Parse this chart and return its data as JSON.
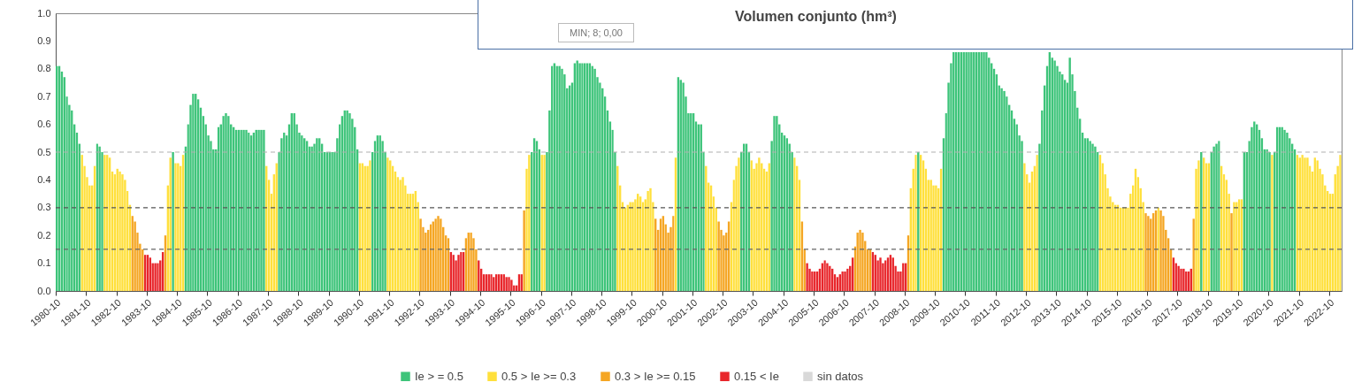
{
  "chart_data": {
    "type": "bar",
    "legend": "bottom",
    "grid": false,
    "annotations": [
      "Volumen conjunto (hm³)",
      "MIN; 8; 0,00"
    ],
    "xlim": [
      "1980-10",
      "2023-03"
    ],
    "xticks": [
      "1980-10",
      "1981-10",
      "1982-10",
      "1983-10",
      "1984-10",
      "1985-10",
      "1986-10",
      "1987-10",
      "1988-10",
      "1989-10",
      "1990-10",
      "1991-10",
      "1992-10",
      "1993-10",
      "1994-10",
      "1995-10",
      "1996-10",
      "1997-10",
      "1998-10",
      "1999-10",
      "2000-10",
      "2001-10",
      "2002-10",
      "2003-10",
      "2004-10",
      "2005-10",
      "2006-10",
      "2007-10",
      "2008-10",
      "2009-10",
      "2010-10",
      "2011-10",
      "2012-10",
      "2013-10",
      "2014-10",
      "2015-10",
      "2016-10",
      "2017-10",
      "2018-10",
      "2019-10",
      "2020-10",
      "2021-10",
      "2022-10"
    ],
    "ylim": [
      0,
      1
    ],
    "yticks": [
      {
        "value": 0,
        "label": "0.0"
      },
      0.1,
      0.2,
      0.3,
      0.4,
      0.5,
      0.6,
      0.7,
      0.8,
      0.9,
      {
        "value": 1,
        "label": "1.0"
      }
    ],
    "ref_lines": [
      {
        "axis": "y",
        "value": 0.5,
        "color": "#b0b0b0",
        "line_style": "dashed"
      },
      {
        "axis": "y",
        "value": 0.3,
        "color": "#555555",
        "line_style": "dashed"
      },
      {
        "axis": "y",
        "value": 0.15,
        "color": "#666666",
        "line_style": "dashed"
      }
    ],
    "series": [
      {
        "name": "Ie > = 0.5",
        "color": "#3ec47a",
        "x": [
          "1980-10",
          "1980-11",
          "1980-12",
          "1981-01",
          "1981-02",
          "1981-03",
          "1981-04",
          "1981-05",
          "1981-06",
          "1981-07",
          "1982-02",
          "1982-03",
          "1982-04",
          "1984-08",
          "1985-01",
          "1985-02",
          "1985-03",
          "1985-04",
          "1985-05",
          "1985-06",
          "1985-07",
          "1985-08",
          "1985-09",
          "1985-10",
          "1985-11",
          "1985-12",
          "1986-01",
          "1986-02",
          "1986-03",
          "1986-04",
          "1986-05",
          "1986-06",
          "1986-07",
          "1986-08",
          "1986-09",
          "1986-10",
          "1986-11",
          "1986-12",
          "1987-01",
          "1987-02",
          "1987-03",
          "1987-04",
          "1987-05",
          "1987-06",
          "1987-07",
          "1987-08",
          "1988-02",
          "1988-03",
          "1988-04",
          "1988-05",
          "1988-06",
          "1988-07",
          "1988-08",
          "1988-09",
          "1988-10",
          "1988-11",
          "1988-12",
          "1989-01",
          "1989-02",
          "1989-03",
          "1989-04",
          "1989-05",
          "1989-06",
          "1989-07",
          "1989-08",
          "1989-09",
          "1989-10",
          "1989-11",
          "1989-12",
          "1990-01",
          "1990-02",
          "1990-03",
          "1990-04",
          "1990-05",
          "1990-06",
          "1990-07",
          "1990-08",
          "1990-09",
          "1991-03",
          "1991-04",
          "1991-05",
          "1991-06",
          "1991-07",
          "1991-08",
          "1996-06",
          "1996-07",
          "1996-08",
          "1996-09",
          "1996-12",
          "1997-01",
          "1997-02",
          "1997-03",
          "1997-04",
          "1997-05",
          "1997-06",
          "1997-07",
          "1997-08",
          "1997-09",
          "1997-10",
          "1997-11",
          "1997-12",
          "1998-01",
          "1998-02",
          "1998-03",
          "1998-04",
          "1998-05",
          "1998-06",
          "1998-07",
          "1998-08",
          "1998-09",
          "1998-10",
          "1998-11",
          "1998-12",
          "1999-01",
          "1999-02",
          "1999-03",
          "2001-04",
          "2001-05",
          "2001-06",
          "2001-07",
          "2001-08",
          "2001-09",
          "2001-10",
          "2001-11",
          "2001-12",
          "2002-01",
          "2002-02",
          "2003-05",
          "2003-06",
          "2003-07",
          "2003-08",
          "2004-05",
          "2004-06",
          "2004-07",
          "2004-08",
          "2004-09",
          "2004-10",
          "2004-11",
          "2004-12",
          "2005-01",
          "2009-03",
          "2010-01",
          "2010-02",
          "2010-03",
          "2010-04",
          "2010-05",
          "2010-06",
          "2010-07",
          "2010-08",
          "2010-09",
          "2010-10",
          "2010-11",
          "2010-12",
          "2011-01",
          "2011-02",
          "2011-03",
          "2011-04",
          "2011-05",
          "2011-06",
          "2011-07",
          "2011-08",
          "2011-09",
          "2011-10",
          "2011-11",
          "2011-12",
          "2012-01",
          "2012-02",
          "2012-03",
          "2012-04",
          "2012-05",
          "2012-06",
          "2012-07",
          "2012-08",
          "2013-03",
          "2013-04",
          "2013-05",
          "2013-06",
          "2013-07",
          "2013-08",
          "2013-09",
          "2013-10",
          "2013-11",
          "2013-12",
          "2014-01",
          "2014-02",
          "2014-03",
          "2014-04",
          "2014-05",
          "2014-06",
          "2014-07",
          "2014-08",
          "2014-09",
          "2014-10",
          "2014-11",
          "2014-12",
          "2015-01",
          "2015-02",
          "2018-07",
          "2018-11",
          "2018-12",
          "2019-01",
          "2019-02",
          "2019-12",
          "2020-01",
          "2020-02",
          "2020-03",
          "2020-04",
          "2020-05",
          "2020-06",
          "2020-07",
          "2020-08",
          "2020-09",
          "2020-10",
          "2020-12",
          "2021-01",
          "2021-02",
          "2021-03",
          "2021-04",
          "2021-05",
          "2021-06",
          "2021-07",
          "2021-08"
        ],
        "values": [
          0.81,
          0.81,
          0.79,
          0.77,
          0.7,
          0.67,
          0.65,
          0.6,
          0.57,
          0.53,
          0.53,
          0.52,
          0.5,
          0.5,
          0.52,
          0.6,
          0.67,
          0.71,
          0.71,
          0.69,
          0.66,
          0.63,
          0.6,
          0.56,
          0.54,
          0.51,
          0.51,
          0.59,
          0.6,
          0.63,
          0.64,
          0.63,
          0.6,
          0.59,
          0.58,
          0.58,
          0.58,
          0.58,
          0.58,
          0.57,
          0.56,
          0.57,
          0.58,
          0.58,
          0.58,
          0.58,
          0.5,
          0.55,
          0.57,
          0.56,
          0.6,
          0.64,
          0.64,
          0.6,
          0.57,
          0.56,
          0.55,
          0.54,
          0.52,
          0.52,
          0.53,
          0.55,
          0.55,
          0.53,
          0.5,
          0.5,
          0.5,
          0.5,
          0.5,
          0.55,
          0.6,
          0.63,
          0.65,
          0.65,
          0.64,
          0.62,
          0.59,
          0.51,
          0.5,
          0.54,
          0.56,
          0.56,
          0.54,
          0.5,
          0.5,
          0.55,
          0.54,
          0.51,
          0.5,
          0.65,
          0.81,
          0.82,
          0.81,
          0.81,
          0.8,
          0.78,
          0.73,
          0.74,
          0.75,
          0.82,
          0.83,
          0.82,
          0.82,
          0.82,
          0.82,
          0.82,
          0.81,
          0.8,
          0.77,
          0.75,
          0.73,
          0.7,
          0.65,
          0.61,
          0.58,
          0.5,
          0.77,
          0.76,
          0.75,
          0.7,
          0.64,
          0.64,
          0.64,
          0.61,
          0.6,
          0.6,
          0.5,
          0.5,
          0.53,
          0.53,
          0.5,
          0.54,
          0.63,
          0.63,
          0.6,
          0.57,
          0.56,
          0.55,
          0.53,
          0.5,
          0.5,
          0.55,
          0.64,
          0.75,
          0.82,
          0.86,
          0.86,
          0.86,
          0.86,
          0.86,
          0.86,
          0.86,
          0.86,
          0.86,
          0.86,
          0.86,
          0.86,
          0.86,
          0.86,
          0.84,
          0.82,
          0.8,
          0.78,
          0.74,
          0.73,
          0.72,
          0.7,
          0.67,
          0.65,
          0.62,
          0.6,
          0.56,
          0.54,
          0.53,
          0.65,
          0.74,
          0.81,
          0.86,
          0.84,
          0.83,
          0.81,
          0.79,
          0.78,
          0.76,
          0.75,
          0.84,
          0.78,
          0.72,
          0.66,
          0.62,
          0.57,
          0.55,
          0.55,
          0.54,
          0.53,
          0.52,
          0.5,
          0.5,
          0.5,
          0.52,
          0.53,
          0.54,
          0.5,
          0.5,
          0.54,
          0.59,
          0.61,
          0.6,
          0.58,
          0.55,
          0.51,
          0.51,
          0.5,
          0.5,
          0.59,
          0.59,
          0.59,
          0.58,
          0.57,
          0.55,
          0.53,
          0.51
        ]
      },
      {
        "name": "0.5 > Ie >= 0.3",
        "color": "#ffe03c",
        "x": [
          "1981-08",
          "1981-09",
          "1981-10",
          "1981-11",
          "1981-12",
          "1982-01",
          "1982-05",
          "1982-06",
          "1982-07",
          "1982-08",
          "1982-09",
          "1982-10",
          "1982-11",
          "1982-12",
          "1983-01",
          "1983-02",
          "1983-03",
          "1984-06",
          "1984-07",
          "1984-09",
          "1984-10",
          "1984-11",
          "1984-12",
          "1987-09",
          "1987-10",
          "1987-11",
          "1987-12",
          "1988-01",
          "1990-10",
          "1990-11",
          "1990-12",
          "1991-01",
          "1991-02",
          "1991-09",
          "1991-10",
          "1991-11",
          "1991-12",
          "1992-01",
          "1992-02",
          "1992-03",
          "1992-04",
          "1992-05",
          "1992-06",
          "1992-07",
          "1992-08",
          "1992-09",
          "1996-04",
          "1996-05",
          "1996-10",
          "1996-11",
          "1999-04",
          "1999-05",
          "1999-06",
          "1999-07",
          "1999-08",
          "1999-09",
          "1999-10",
          "1999-11",
          "1999-12",
          "2000-01",
          "2000-02",
          "2000-03",
          "2000-04",
          "2000-05",
          "2000-06",
          "2001-03",
          "2002-03",
          "2002-04",
          "2002-05",
          "2002-06",
          "2002-07",
          "2003-01",
          "2003-02",
          "2003-03",
          "2003-04",
          "2003-09",
          "2003-10",
          "2003-11",
          "2003-12",
          "2004-01",
          "2004-02",
          "2004-03",
          "2004-04",
          "2005-02",
          "2005-03",
          "2005-04",
          "2008-12",
          "2009-01",
          "2009-02",
          "2009-04",
          "2009-05",
          "2009-06",
          "2009-07",
          "2009-08",
          "2009-09",
          "2009-10",
          "2009-11",
          "2009-12",
          "2012-09",
          "2012-10",
          "2012-11",
          "2012-12",
          "2013-01",
          "2013-02",
          "2015-03",
          "2015-04",
          "2015-05",
          "2015-06",
          "2015-07",
          "2015-08",
          "2015-09",
          "2015-10",
          "2015-11",
          "2015-12",
          "2016-01",
          "2016-02",
          "2016-03",
          "2016-04",
          "2016-05",
          "2016-06",
          "2016-07",
          "2016-08",
          "2017-02",
          "2018-05",
          "2018-06",
          "2018-08",
          "2018-09",
          "2018-10",
          "2019-03",
          "2019-04",
          "2019-05",
          "2019-06",
          "2019-08",
          "2019-09",
          "2019-10",
          "2019-11",
          "2020-11",
          "2021-09",
          "2021-10",
          "2021-11",
          "2021-12",
          "2022-01",
          "2022-02",
          "2022-03",
          "2022-04",
          "2022-05",
          "2022-06",
          "2022-07",
          "2022-08",
          "2022-09",
          "2022-10",
          "2022-11",
          "2022-12",
          "2023-01",
          "2023-02"
        ],
        "values": [
          0.49,
          0.45,
          0.41,
          0.38,
          0.38,
          0.45,
          0.49,
          0.49,
          0.48,
          0.43,
          0.42,
          0.44,
          0.43,
          0.42,
          0.4,
          0.36,
          0.31,
          0.38,
          0.48,
          0.46,
          0.46,
          0.45,
          0.49,
          0.45,
          0.4,
          0.35,
          0.42,
          0.46,
          0.46,
          0.46,
          0.45,
          0.45,
          0.47,
          0.48,
          0.47,
          0.45,
          0.43,
          0.41,
          0.4,
          0.41,
          0.38,
          0.35,
          0.35,
          0.35,
          0.36,
          0.32,
          0.44,
          0.49,
          0.49,
          0.49,
          0.45,
          0.38,
          0.32,
          0.3,
          0.31,
          0.32,
          0.32,
          0.33,
          0.35,
          0.34,
          0.32,
          0.33,
          0.36,
          0.37,
          0.32,
          0.48,
          0.45,
          0.39,
          0.38,
          0.34,
          0.3,
          0.32,
          0.4,
          0.45,
          0.48,
          0.47,
          0.44,
          0.46,
          0.48,
          0.46,
          0.44,
          0.43,
          0.46,
          0.48,
          0.45,
          0.4,
          0.37,
          0.44,
          0.49,
          0.49,
          0.47,
          0.44,
          0.4,
          0.4,
          0.38,
          0.38,
          0.37,
          0.44,
          0.46,
          0.42,
          0.39,
          0.43,
          0.45,
          0.49,
          0.49,
          0.46,
          0.42,
          0.37,
          0.34,
          0.32,
          0.31,
          0.31,
          0.3,
          0.3,
          0.3,
          0.3,
          0.35,
          0.38,
          0.44,
          0.41,
          0.37,
          0.32,
          0.3,
          0.44,
          0.47,
          0.48,
          0.46,
          0.46,
          0.45,
          0.42,
          0.4,
          0.35,
          0.32,
          0.32,
          0.33,
          0.33,
          0.49,
          0.49,
          0.48,
          0.49,
          0.48,
          0.48,
          0.45,
          0.43,
          0.48,
          0.47,
          0.44,
          0.42,
          0.38,
          0.36,
          0.35,
          0.35,
          0.42,
          0.45,
          0.49
        ]
      },
      {
        "name": "0.3 > Ie >= 0.15",
        "color": "#f5a623",
        "x": [
          "1983-04",
          "1983-05",
          "1983-06",
          "1983-07",
          "1983-08",
          "1984-05",
          "1992-10",
          "1992-11",
          "1992-12",
          "1993-01",
          "1993-02",
          "1993-03",
          "1993-04",
          "1993-05",
          "1993-06",
          "1993-07",
          "1993-08",
          "1993-09",
          "1994-04",
          "1994-05",
          "1994-06",
          "1994-07",
          "1994-08",
          "1996-03",
          "2000-07",
          "2000-08",
          "2000-09",
          "2000-10",
          "2000-11",
          "2000-12",
          "2001-01",
          "2001-02",
          "2002-08",
          "2002-09",
          "2002-10",
          "2002-11",
          "2002-12",
          "2005-05",
          "2005-06",
          "2007-02",
          "2007-03",
          "2007-04",
          "2007-05",
          "2007-06",
          "2007-07",
          "2007-08",
          "2008-11",
          "2016-09",
          "2016-10",
          "2016-11",
          "2016-12",
          "2017-01",
          "2017-03",
          "2017-04",
          "2017-05",
          "2017-06",
          "2017-07",
          "2018-04",
          "2019-07"
        ],
        "values": [
          0.27,
          0.25,
          0.21,
          0.17,
          0.15,
          0.2,
          0.26,
          0.23,
          0.21,
          0.22,
          0.24,
          0.25,
          0.26,
          0.27,
          0.26,
          0.23,
          0.2,
          0.19,
          0.19,
          0.21,
          0.21,
          0.19,
          0.15,
          0.29,
          0.26,
          0.22,
          0.26,
          0.27,
          0.24,
          0.21,
          0.23,
          0.27,
          0.25,
          0.22,
          0.2,
          0.21,
          0.25,
          0.25,
          0.15,
          0.16,
          0.21,
          0.22,
          0.21,
          0.18,
          0.15,
          0.15,
          0.2,
          0.28,
          0.27,
          0.26,
          0.28,
          0.29,
          0.29,
          0.27,
          0.22,
          0.19,
          0.15,
          0.26,
          0.28
        ]
      },
      {
        "name": "0.15 < Ie",
        "color": "#e8262b",
        "x": [
          "1983-09",
          "1983-10",
          "1983-11",
          "1983-12",
          "1984-01",
          "1984-02",
          "1984-03",
          "1984-04",
          "1993-10",
          "1993-11",
          "1993-12",
          "1994-01",
          "1994-02",
          "1994-03",
          "1994-09",
          "1994-10",
          "1994-11",
          "1994-12",
          "1995-01",
          "1995-02",
          "1995-03",
          "1995-04",
          "1995-05",
          "1995-06",
          "1995-07",
          "1995-08",
          "1995-09",
          "1995-10",
          "1995-11",
          "1995-12",
          "1996-01",
          "1996-02",
          "2005-07",
          "2005-08",
          "2005-09",
          "2005-10",
          "2005-11",
          "2005-12",
          "2006-01",
          "2006-02",
          "2006-03",
          "2006-04",
          "2006-05",
          "2006-06",
          "2006-07",
          "2006-08",
          "2006-09",
          "2006-10",
          "2006-11",
          "2006-12",
          "2007-01",
          "2007-09",
          "2007-10",
          "2007-11",
          "2007-12",
          "2008-01",
          "2008-02",
          "2008-03",
          "2008-04",
          "2008-05",
          "2008-06",
          "2008-07",
          "2008-08",
          "2008-09",
          "2008-10",
          "2017-08",
          "2017-09",
          "2017-10",
          "2017-11",
          "2017-12",
          "2018-01",
          "2018-02",
          "2018-03"
        ],
        "values": [
          0.13,
          0.13,
          0.12,
          0.1,
          0.1,
          0.1,
          0.11,
          0.14,
          0.14,
          0.13,
          0.11,
          0.13,
          0.14,
          0.14,
          0.11,
          0.08,
          0.06,
          0.06,
          0.06,
          0.06,
          0.05,
          0.06,
          0.06,
          0.06,
          0.06,
          0.05,
          0.05,
          0.04,
          0.02,
          0.02,
          0.06,
          0.06,
          0.1,
          0.08,
          0.07,
          0.07,
          0.07,
          0.08,
          0.1,
          0.11,
          0.1,
          0.09,
          0.08,
          0.06,
          0.05,
          0.06,
          0.07,
          0.07,
          0.08,
          0.09,
          0.12,
          0.14,
          0.13,
          0.11,
          0.12,
          0.1,
          0.11,
          0.12,
          0.13,
          0.12,
          0.09,
          0.07,
          0.07,
          0.1,
          0.1,
          0.12,
          0.1,
          0.09,
          0.08,
          0.08,
          0.07,
          0.07,
          0.08
        ]
      },
      {
        "name": "sin datos",
        "color": "#d9d9d9"
      }
    ]
  }
}
